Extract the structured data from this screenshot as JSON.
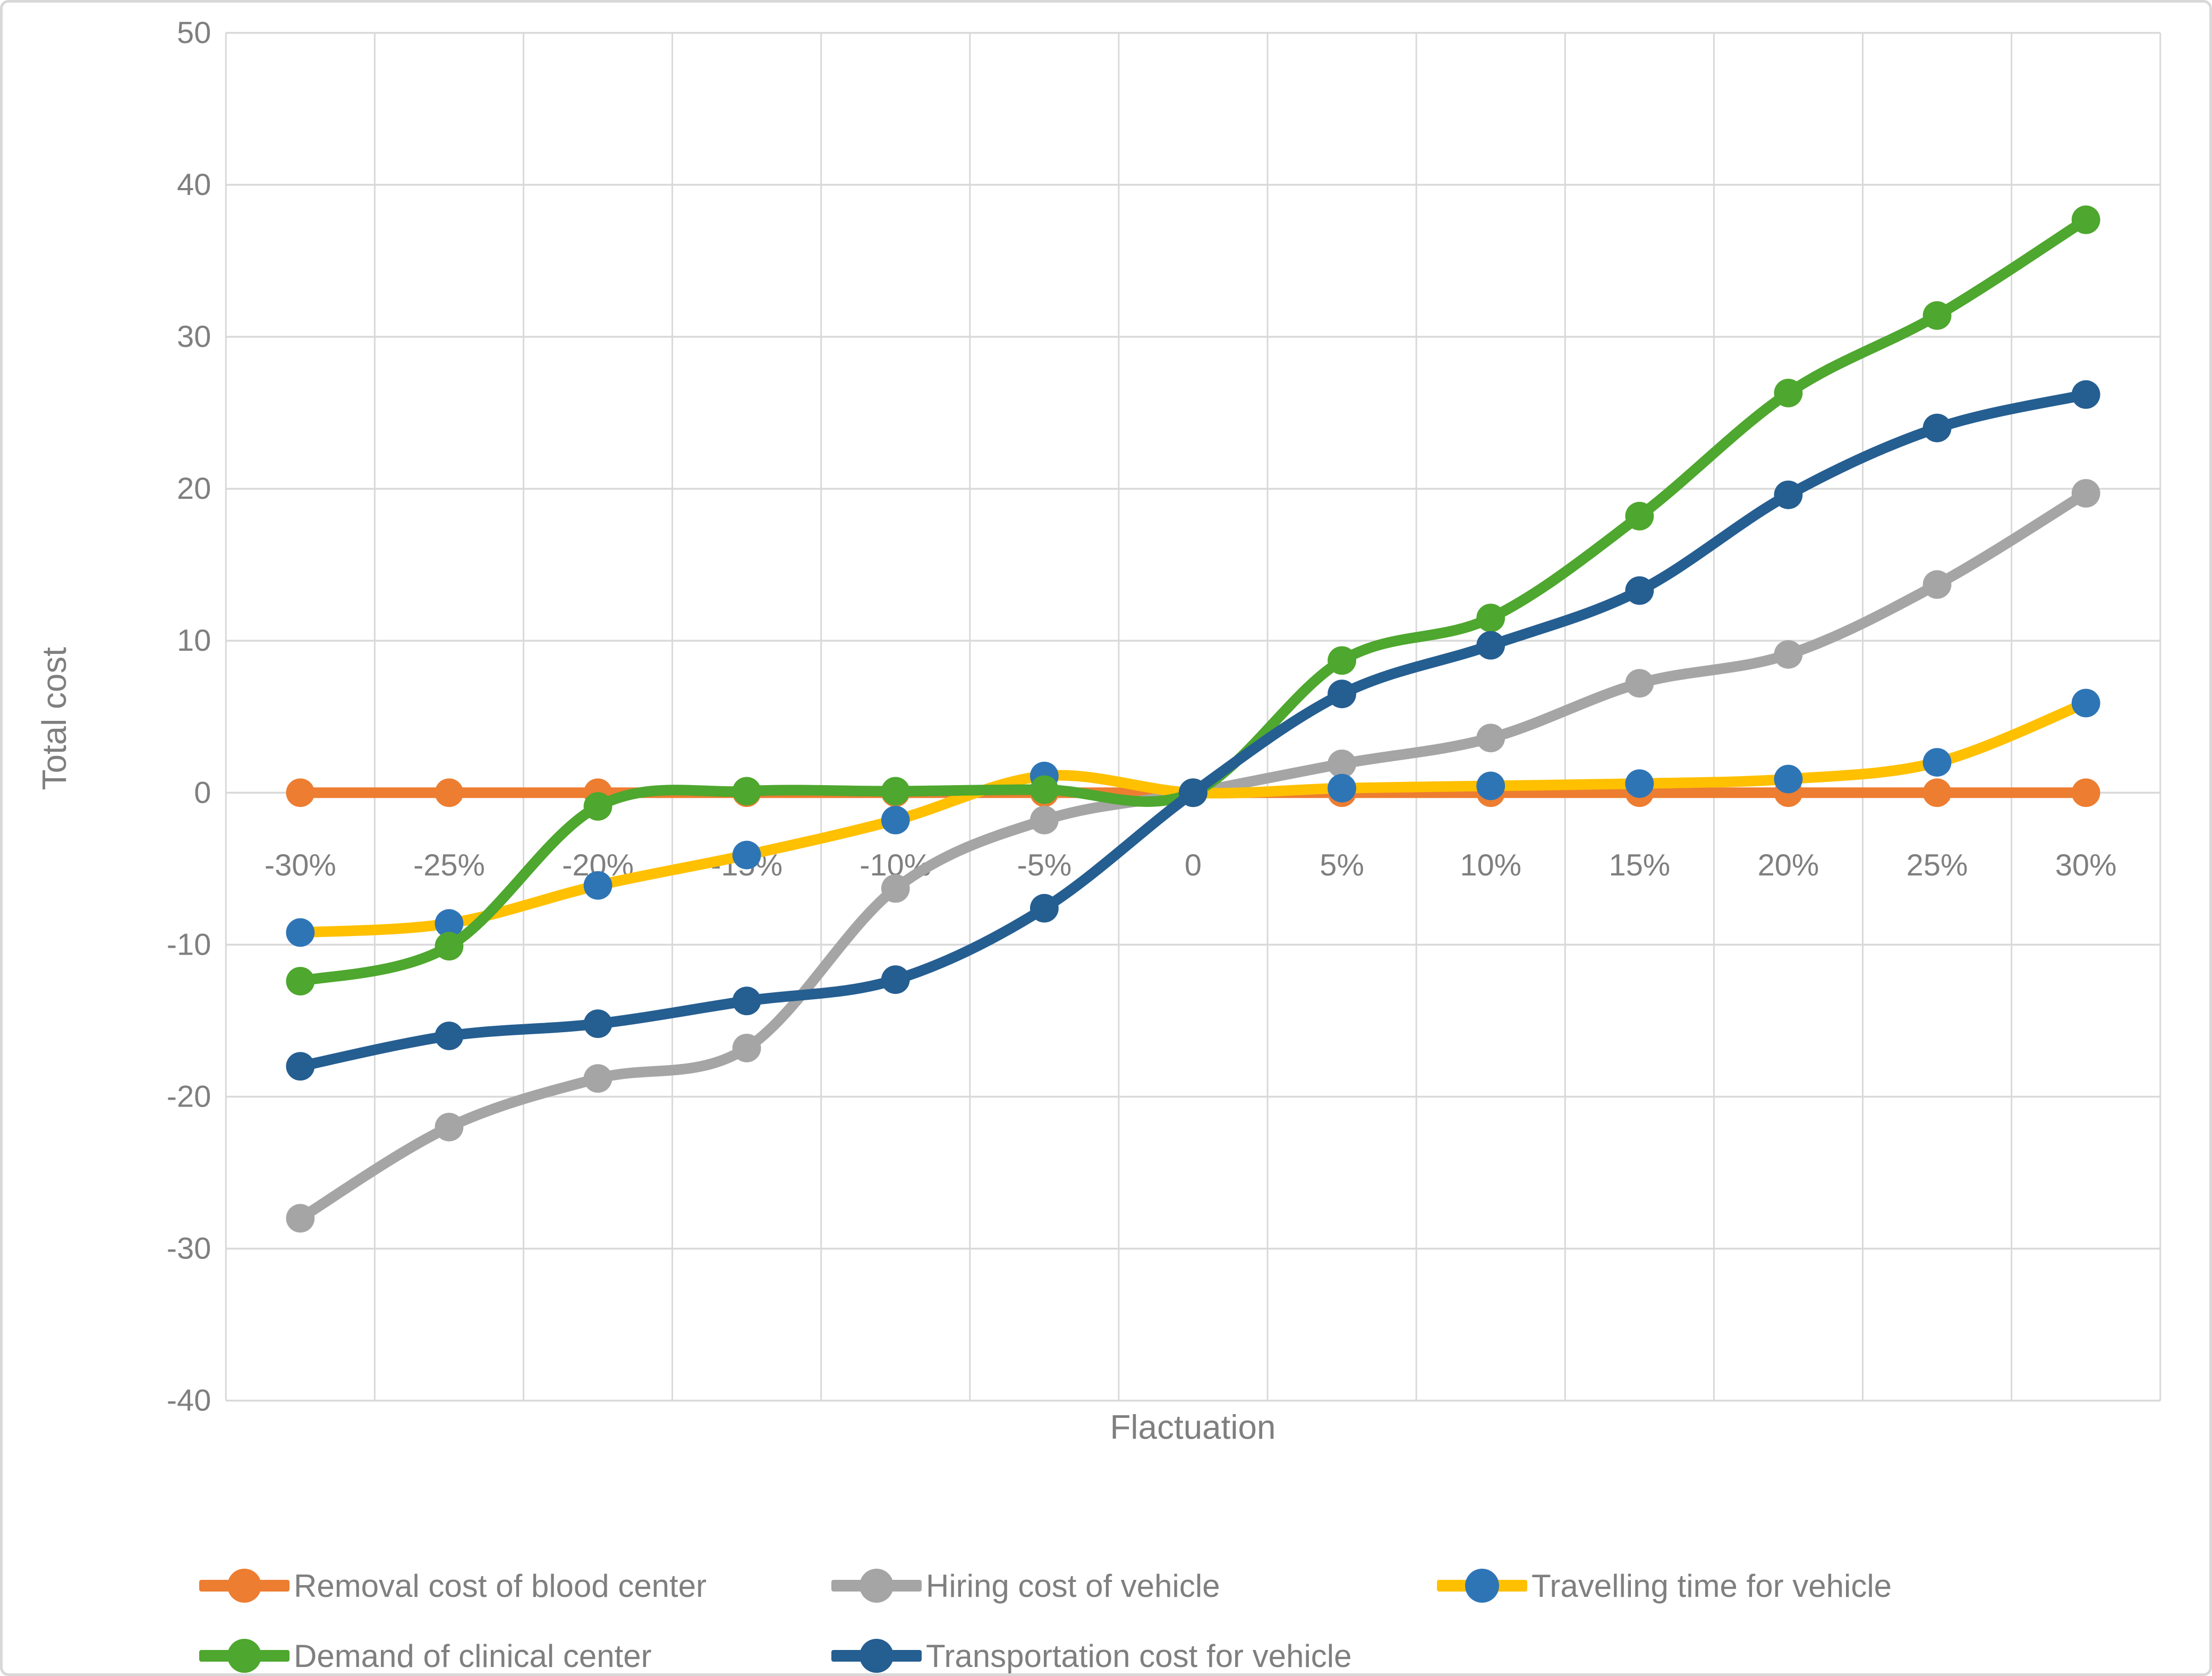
{
  "figure": {
    "background": "#ffffff",
    "border_color": "#d8d8d8",
    "grid_color": "#d9d9d9",
    "text_color": "#7f7f7f"
  },
  "chart_data": {
    "type": "line",
    "title": "",
    "xlabel": "Flactuation",
    "ylabel": "Total cost",
    "categories": [
      "-30%",
      "-25%",
      "-20%",
      "-15%",
      "-10%",
      "-5%",
      "0",
      "5%",
      "10%",
      "15%",
      "20%",
      "25%",
      "30%"
    ],
    "ylim": [
      -40,
      50
    ],
    "yticks": [
      50,
      40,
      30,
      20,
      10,
      0,
      -10,
      -20,
      -30,
      -40
    ],
    "grid": true,
    "smooth_lines": true,
    "legend_position": "bottom",
    "series": [
      {
        "name": "Removal cost of blood center",
        "line_color": "#ED7D31",
        "marker_color": "#ED7D31",
        "values": [
          0,
          0,
          0,
          0,
          0,
          0,
          0,
          0,
          0,
          0,
          0,
          0,
          0
        ]
      },
      {
        "name": "Hiring cost of vehicle",
        "line_color": "#A5A5A5",
        "marker_color": "#A5A5A5",
        "values": [
          -28,
          -22,
          -18.8,
          -16.8,
          -6.3,
          -1.8,
          0,
          1.9,
          3.6,
          7.2,
          9.1,
          13.7,
          19.7
        ]
      },
      {
        "name": "Travelling time for vehicle",
        "line_color": "#FFC000",
        "marker_color": "#2E75B6",
        "values": [
          -9.2,
          -8.6,
          -6.1,
          -4.1,
          -1.8,
          1.1,
          0,
          0.3,
          0.45,
          0.6,
          0.9,
          2,
          5.9
        ]
      },
      {
        "name": "Demand of clinical center",
        "line_color": "#4EA72E",
        "marker_color": "#4EA72E",
        "values": [
          -12.4,
          -10.1,
          -0.9,
          0.1,
          0.1,
          0.2,
          0,
          8.7,
          11.5,
          18.2,
          26.3,
          31.4,
          37.7
        ]
      },
      {
        "name": "Transportation cost for vehicle",
        "line_color": "#255E91",
        "marker_color": "#255E91",
        "values": [
          -18,
          -16,
          -15.2,
          -13.7,
          -12.3,
          -7.6,
          0,
          6.5,
          9.7,
          13.3,
          19.6,
          24,
          26.2
        ]
      }
    ],
    "legend_rows": [
      [
        0,
        1,
        2
      ],
      [
        3,
        4
      ]
    ]
  }
}
